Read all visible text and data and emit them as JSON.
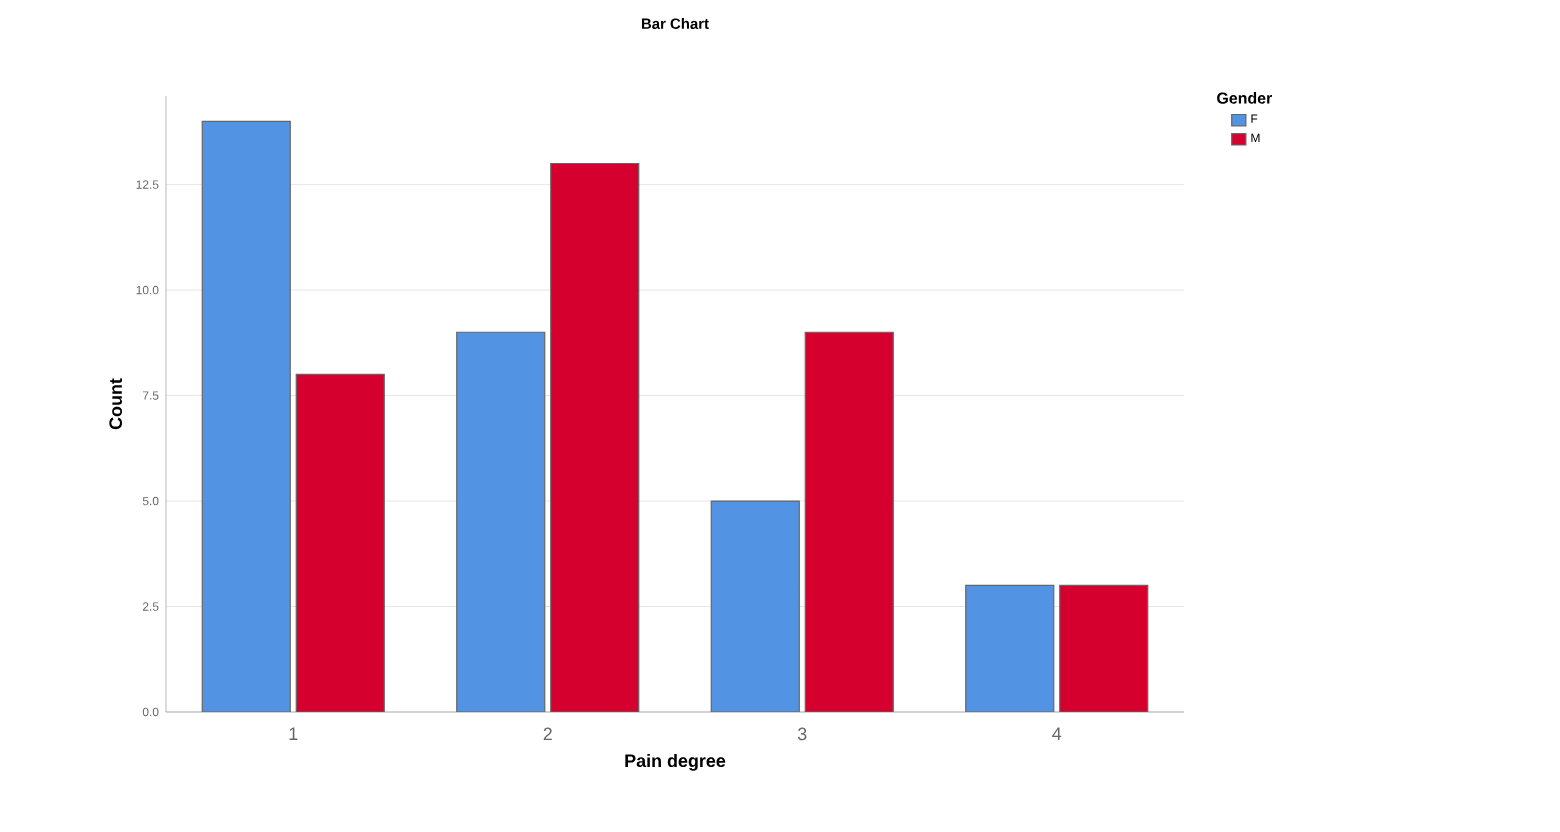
{
  "chart_data": {
    "type": "bar",
    "title": "Bar Chart",
    "xlabel": "Pain degree",
    "ylabel": "Count",
    "legend_title": "Gender",
    "categories": [
      "1",
      "2",
      "3",
      "4"
    ],
    "series": [
      {
        "name": "F",
        "color": "#5393e3",
        "values": [
          14,
          9,
          5,
          3
        ]
      },
      {
        "name": "M",
        "color": "#d5002d",
        "values": [
          8,
          13,
          9,
          3
        ]
      }
    ],
    "ylim": [
      0,
      14.6
    ],
    "yticks": [
      {
        "value": 0,
        "label": "0.0"
      },
      {
        "value": 2.5,
        "label": "2.5"
      },
      {
        "value": 5,
        "label": "5.0"
      },
      {
        "value": 7.5,
        "label": "7.5"
      },
      {
        "value": 10,
        "label": "10.0"
      },
      {
        "value": 12.5,
        "label": "12.5"
      }
    ],
    "grid": "y",
    "legend": "top right"
  }
}
